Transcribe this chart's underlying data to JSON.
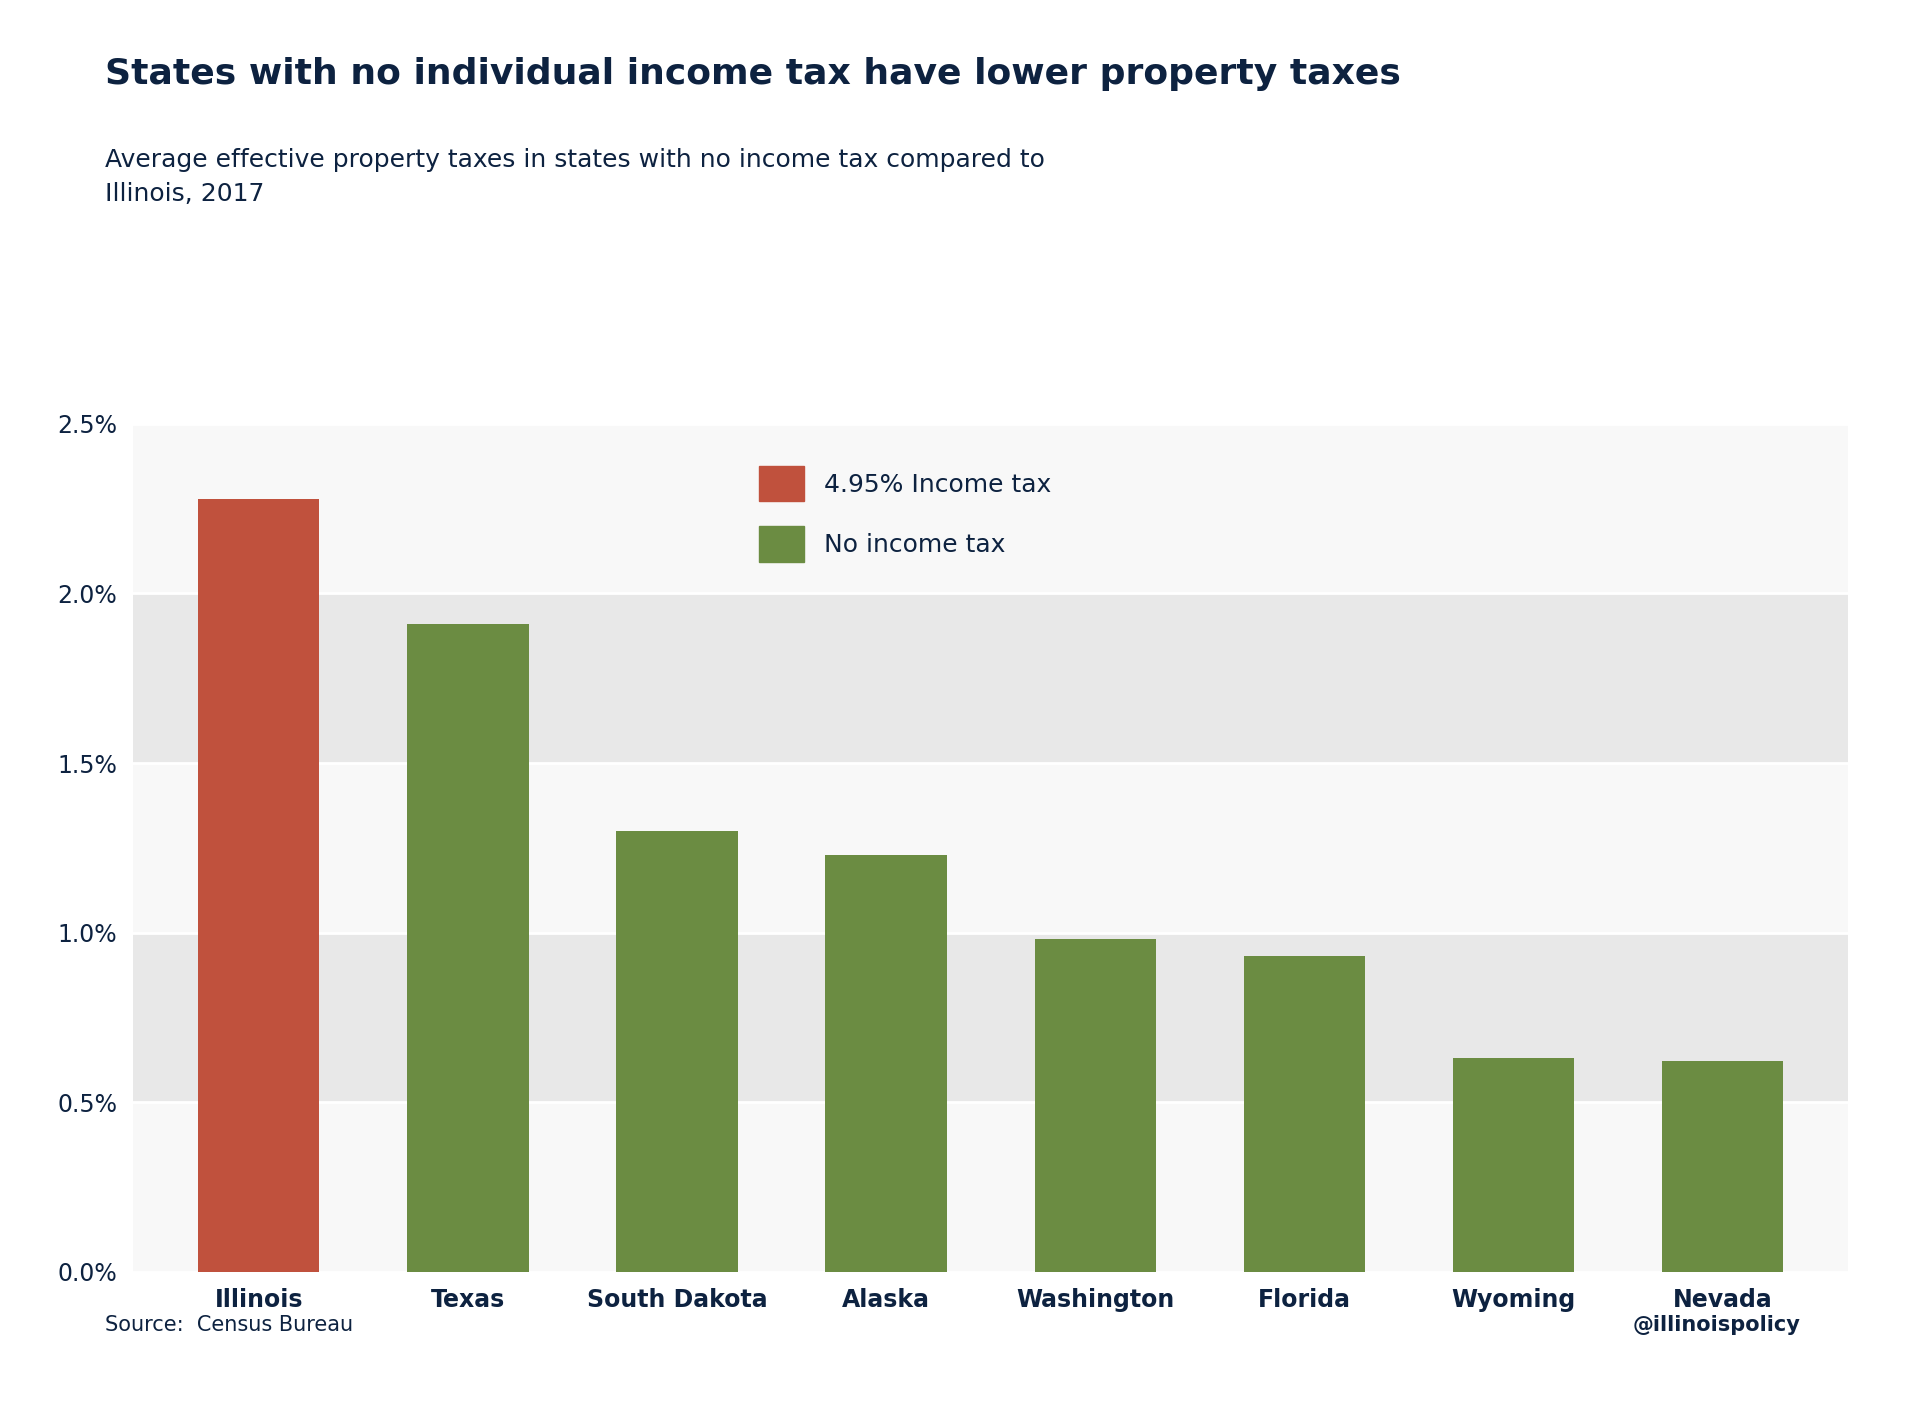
{
  "categories": [
    "Illinois",
    "Texas",
    "South Dakota",
    "Alaska",
    "Washington",
    "Florida",
    "Wyoming",
    "Nevada"
  ],
  "values": [
    2.28,
    1.91,
    1.3,
    1.23,
    0.98,
    0.93,
    0.63,
    0.62
  ],
  "colors": [
    "#c0513d",
    "#6b8c42",
    "#6b8c42",
    "#6b8c42",
    "#6b8c42",
    "#6b8c42",
    "#6b8c42",
    "#6b8c42"
  ],
  "title": "States with no individual income tax have lower property taxes",
  "subtitle": "Average effective property taxes in states with no income tax compared to\nIllinois, 2017",
  "legend_labels": [
    "4.95% Income tax",
    "No income tax"
  ],
  "legend_colors": [
    "#c0513d",
    "#6b8c42"
  ],
  "source_text": "Source:  Census Bureau",
  "watermark": "@illinoispolicy",
  "ylim": [
    0,
    2.5
  ],
  "yticks": [
    0.0,
    0.5,
    1.0,
    1.5,
    2.0,
    2.5
  ],
  "background_color": "#ffffff",
  "plot_bg_color": "#f0f0f0",
  "band_colors_even": "#f8f8f8",
  "band_colors_odd": "#e8e8e8",
  "title_color": "#0d2240",
  "subtitle_color": "#0d2240",
  "source_color": "#0d2240",
  "watermark_color": "#0d2240",
  "title_fontsize": 26,
  "subtitle_fontsize": 18,
  "tick_label_fontsize": 17,
  "source_fontsize": 15,
  "watermark_fontsize": 15,
  "legend_fontsize": 18,
  "xlabel_fontsize": 17,
  "bar_width": 0.58
}
